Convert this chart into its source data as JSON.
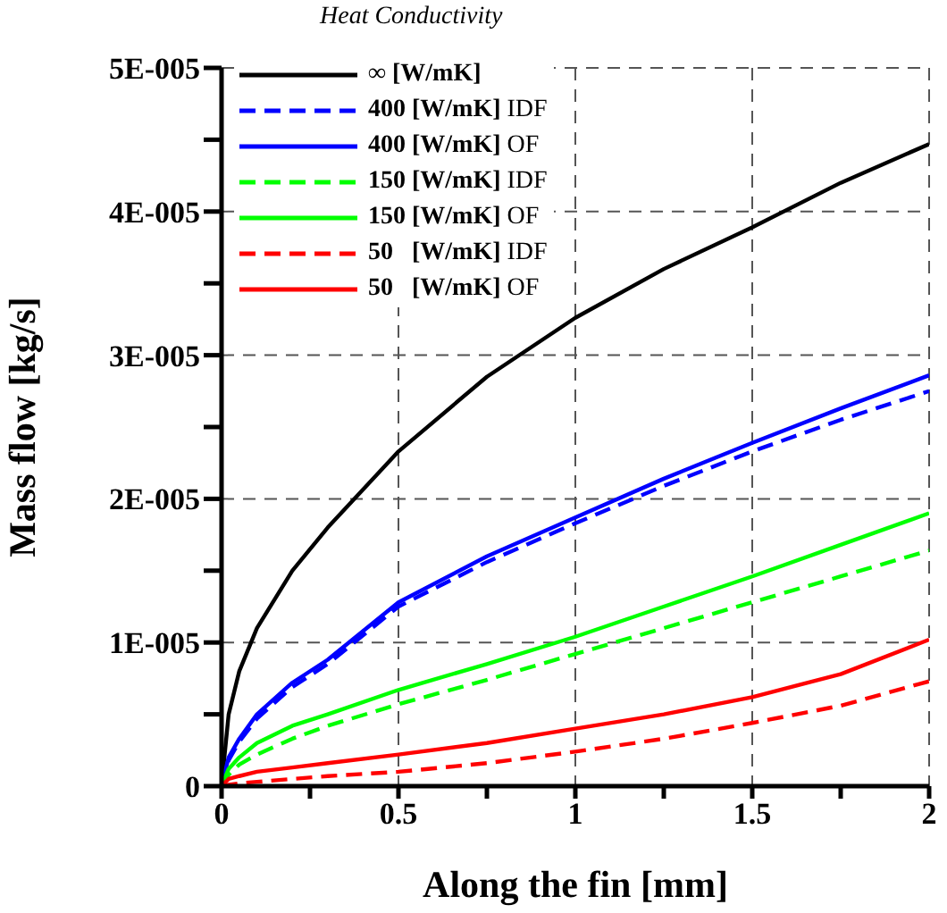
{
  "chart_data": {
    "type": "line",
    "xlabel": "Along the fin [mm]",
    "ylabel": "Mass flow [kg/s]",
    "legend_title": "Heat Conductivity",
    "legend": "top left",
    "grid": true,
    "marker": "none",
    "x": [
      0,
      0.02,
      0.05,
      0.1,
      0.2,
      0.3,
      0.5,
      0.75,
      1,
      1.25,
      1.5,
      1.75,
      2
    ],
    "xlim": [
      0,
      2
    ],
    "xticks": [
      0,
      {
        "value": 0.25,
        "label": null
      },
      0.5,
      {
        "value": 0.75,
        "label": null
      },
      1,
      {
        "value": 1.25,
        "label": null
      },
      1.5,
      {
        "value": 1.75,
        "label": null
      },
      2
    ],
    "ylim": [
      0,
      5e-05
    ],
    "yticks": [
      {
        "value": 0,
        "label": "0"
      },
      {
        "value": 5e-06,
        "label": null
      },
      {
        "value": 1e-05,
        "label": "1E-005"
      },
      {
        "value": 1.5e-05,
        "label": null
      },
      {
        "value": 2e-05,
        "label": "2E-005"
      },
      {
        "value": 2.5e-05,
        "label": null
      },
      {
        "value": 3e-05,
        "label": "3E-005"
      },
      {
        "value": 3.5e-05,
        "label": null
      },
      {
        "value": 4e-05,
        "label": "4E-005"
      },
      {
        "value": 4.5e-05,
        "label": null
      },
      {
        "value": 5e-05,
        "label": "5E-005"
      }
    ],
    "series": [
      {
        "name": "∞ [W/mK]",
        "color": "#000000",
        "line_style": "solid",
        "values": [
          0,
          5e-06,
          8e-06,
          1.1e-05,
          1.5e-05,
          1.8e-05,
          2.33e-05,
          2.85e-05,
          3.26e-05,
          3.6e-05,
          3.89e-05,
          4.2e-05,
          4.47e-05
        ]
      },
      {
        "name": "400 [W/mK] IDF",
        "color": "#0000ff",
        "line_style": "dashed",
        "values": [
          0,
          1.8e-06,
          3.1e-06,
          4.7e-06,
          6.9e-06,
          8.5e-06,
          1.25e-05,
          1.56e-05,
          1.83e-05,
          2.09e-05,
          2.33e-05,
          2.55e-05,
          2.75e-05
        ]
      },
      {
        "name": "400 [W/mK] OF",
        "color": "#0000ff",
        "line_style": "solid",
        "values": [
          0,
          2e-06,
          3.3e-06,
          5e-06,
          7.2e-06,
          8.8e-06,
          1.28e-05,
          1.6e-05,
          1.87e-05,
          2.14e-05,
          2.39e-05,
          2.63e-05,
          2.86e-05
        ]
      },
      {
        "name": "150 [W/mK] IDF",
        "color": "#00ff00",
        "line_style": "dashed",
        "values": [
          0,
          8e-07,
          1.5e-06,
          2.2e-06,
          3.3e-06,
          4.2e-06,
          5.7e-06,
          7.4e-06,
          9.2e-06,
          1.1e-05,
          1.28e-05,
          1.46e-05,
          1.64e-05
        ]
      },
      {
        "name": "150 [W/mK] OF",
        "color": "#00ff00",
        "line_style": "solid",
        "values": [
          0,
          1.2e-06,
          2e-06,
          3e-06,
          4.2e-06,
          5e-06,
          6.7e-06,
          8.5e-06,
          1.04e-05,
          1.25e-05,
          1.46e-05,
          1.68e-05,
          1.9e-05
        ]
      },
      {
        "name": "50   [W/mK] IDF",
        "color": "#ff0000",
        "line_style": "dashed",
        "values": [
          0,
          1e-07,
          2e-07,
          3e-07,
          5e-07,
          7e-07,
          1e-06,
          1.6e-06,
          2.4e-06,
          3.3e-06,
          4.4e-06,
          5.6e-06,
          7.3e-06
        ]
      },
      {
        "name": "50   [W/mK] OF",
        "color": "#ff0000",
        "line_style": "solid",
        "values": [
          0,
          5e-07,
          7e-07,
          1e-06,
          1.3e-06,
          1.6e-06,
          2.2e-06,
          3e-06,
          4e-06,
          5e-06,
          6.2e-06,
          7.8e-06,
          1.02e-05
        ]
      }
    ]
  }
}
